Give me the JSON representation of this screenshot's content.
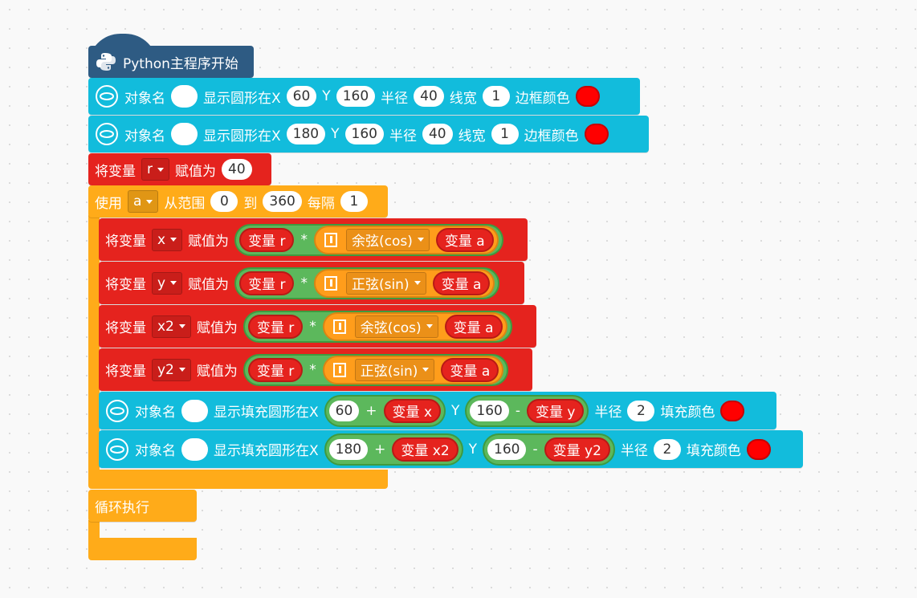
{
  "hat": "Python主程序开始",
  "circle_blocks": [
    {
      "object_label": "对象名",
      "action": "显示圆形在X",
      "x": 60,
      "y_label": "Y",
      "y": 160,
      "radius_label": "半径",
      "radius": 40,
      "line_label": "线宽",
      "line_width": 1,
      "color_label": "边框颜色"
    },
    {
      "object_label": "对象名",
      "action": "显示圆形在X",
      "x": 180,
      "y_label": "Y",
      "y": 160,
      "radius_label": "半径",
      "radius": 40,
      "line_label": "线宽",
      "line_width": 1,
      "color_label": "边框颜色"
    }
  ],
  "set_r": {
    "label": "将变量",
    "var": "r",
    "assign": "赋值为",
    "value": 40
  },
  "loop_range": {
    "label": "使用",
    "var": "a",
    "from": "从范围",
    "start": 0,
    "to": "到",
    "end": 360,
    "step_label": "每隔",
    "step": 1
  },
  "assignments": [
    {
      "label": "将变量",
      "var": "x",
      "assign": "赋值为",
      "left": "变量 r",
      "op": "*",
      "func": "余弦(cos)",
      "arg": "变量 a"
    },
    {
      "label": "将变量",
      "var": "y",
      "assign": "赋值为",
      "left": "变量 r",
      "op": "*",
      "func": "正弦(sin)",
      "arg": "变量 a"
    },
    {
      "label": "将变量",
      "var": "x2",
      "assign": "赋值为",
      "left": "变量 r",
      "op": "*",
      "func": "余弦(cos)",
      "arg": "变量 a"
    },
    {
      "label": "将变量",
      "var": "y2",
      "assign": "赋值为",
      "left": "变量 r",
      "op": "*",
      "func": "正弦(sin)",
      "arg": "变量 a"
    }
  ],
  "fill_blocks": [
    {
      "object_label": "对象名",
      "action": "显示填充圆形在X",
      "x": 60,
      "x_op": "+",
      "x_var": "变量 x",
      "y_label": "Y",
      "y": 160,
      "y_op": "-",
      "y_var": "变量 y",
      "radius_label": "半径",
      "radius": 2,
      "color_label": "填充颜色"
    },
    {
      "object_label": "对象名",
      "action": "显示填充圆形在X",
      "x": 180,
      "x_op": "+",
      "x_var": "变量 x2",
      "y_label": "Y",
      "y": 160,
      "y_op": "-",
      "y_var": "变量 y2",
      "radius_label": "半径",
      "radius": 2,
      "color_label": "填充颜色"
    }
  ],
  "forever": "循环执行"
}
